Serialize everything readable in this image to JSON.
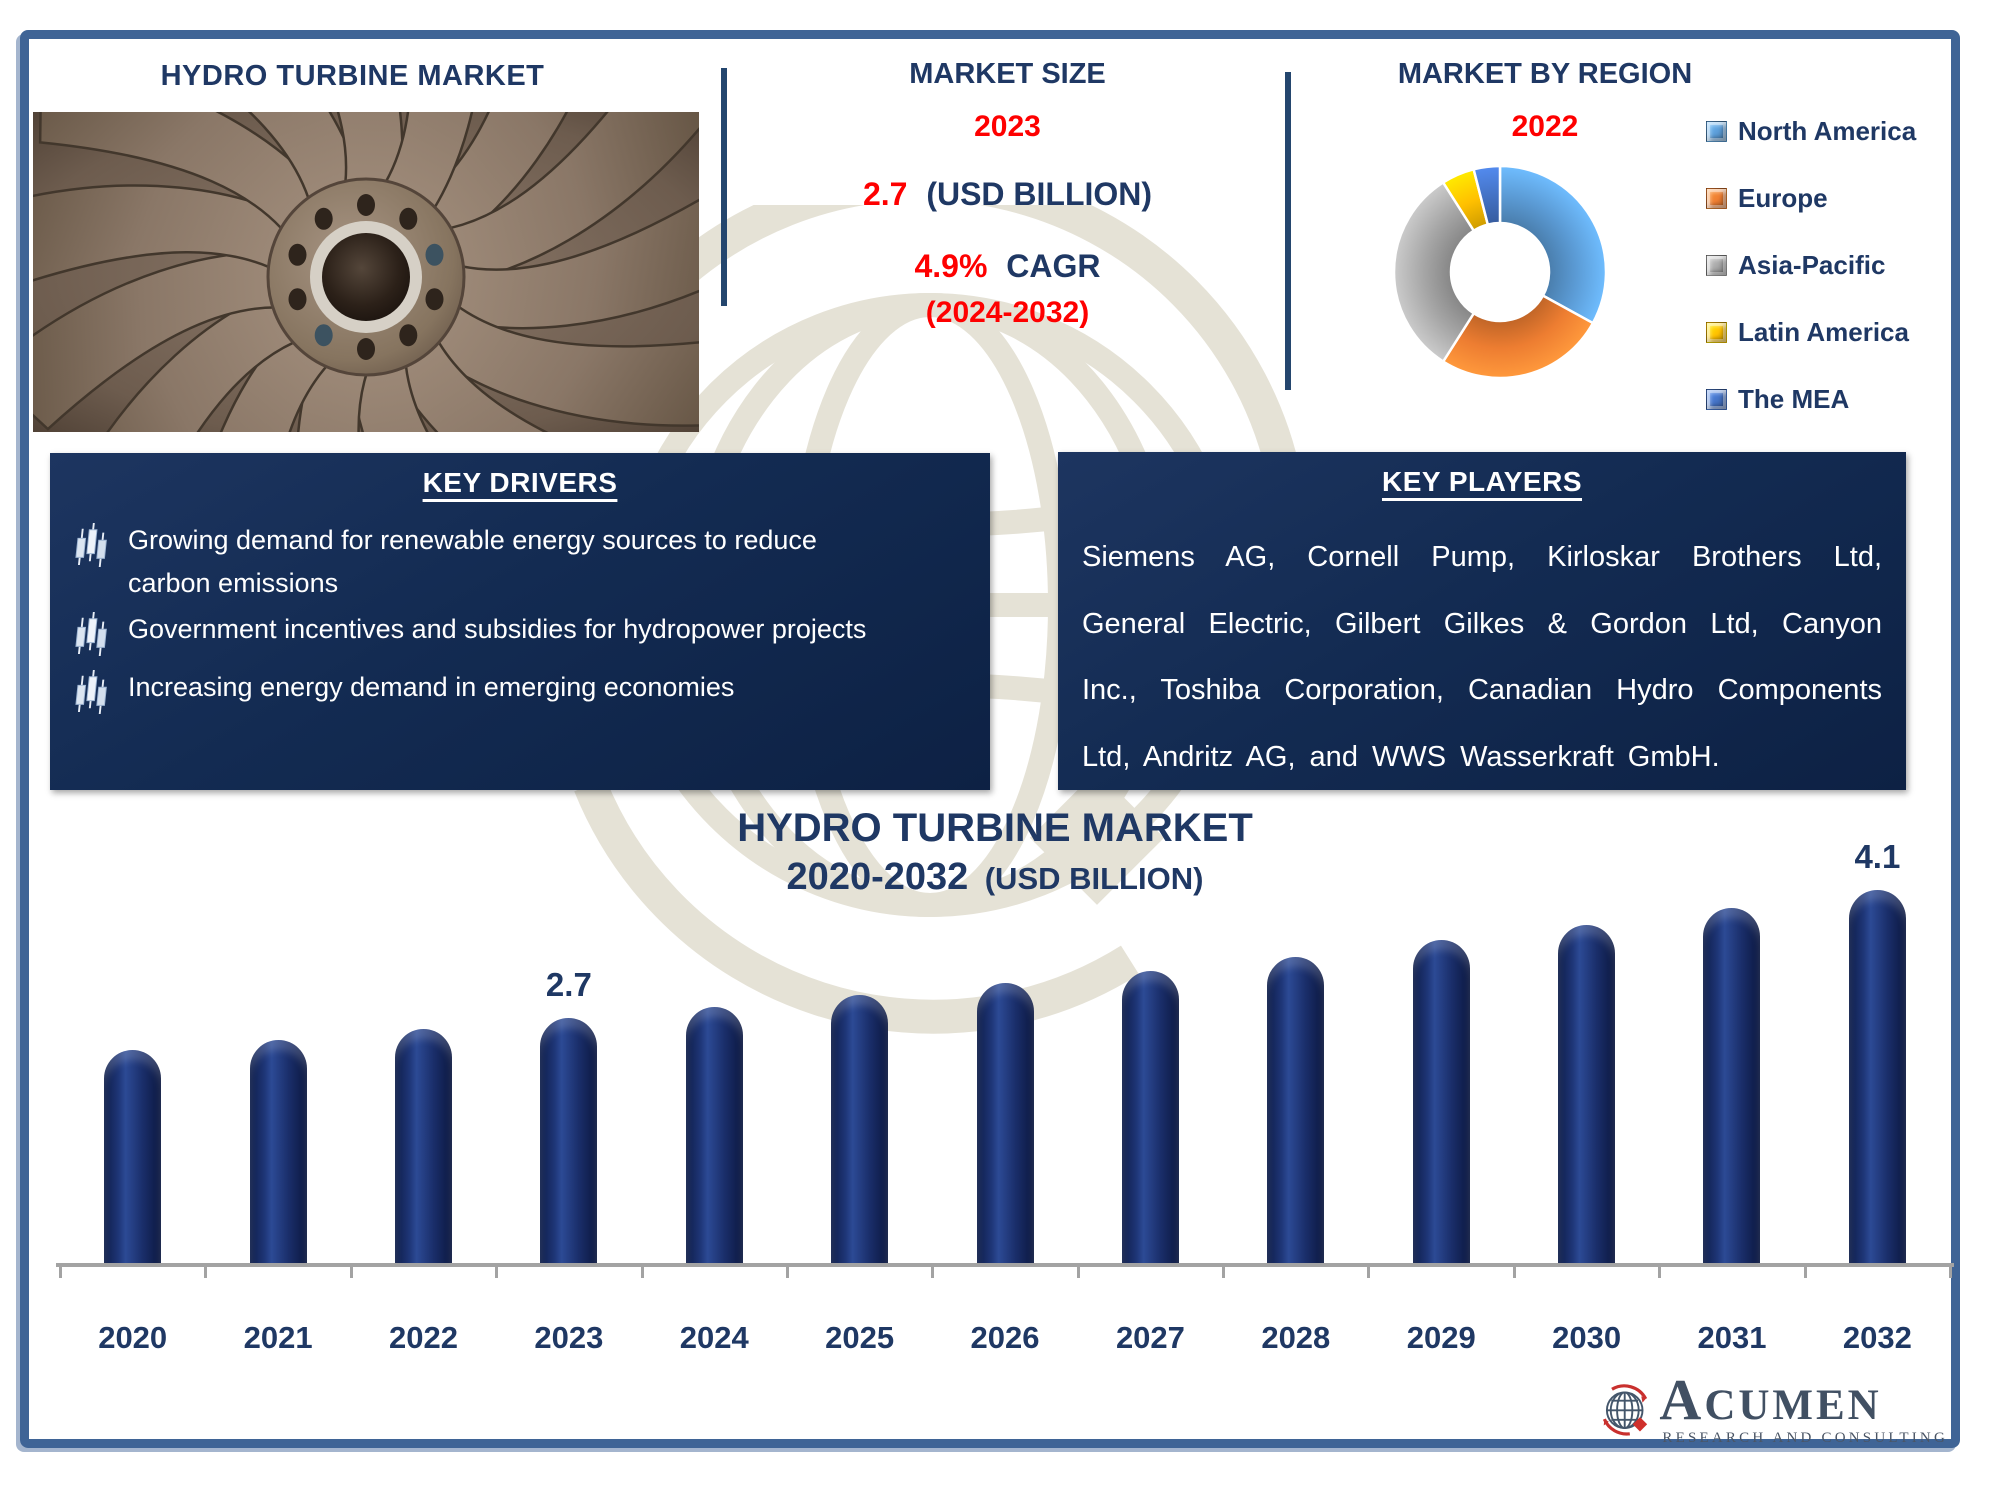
{
  "header": {
    "title": "HYDRO TURBINE MARKET",
    "market_size": {
      "label": "MARKET SIZE",
      "year": "2023",
      "value": "2.7",
      "unit": "(USD BILLION)",
      "cagr": "4.9%",
      "cagr_label": "CAGR",
      "period": "(2024-2032)"
    },
    "region": {
      "label": "MARKET BY REGION",
      "year": "2022"
    }
  },
  "key_drivers": {
    "title": "KEY DRIVERS",
    "items": [
      "Growing demand for renewable energy sources to reduce carbon emissions",
      "Government incentives and subsidies for hydropower projects",
      "Increasing energy demand in emerging economies"
    ]
  },
  "key_players": {
    "title": "KEY PLAYERS",
    "text": "Siemens AG, Cornell Pump, Kirloskar Brothers Ltd, General Electric, Gilbert Gilkes & Gordon Ltd, Canyon Inc., Toshiba Corporation, Canadian Hydro Components Ltd, Andritz AG, and WWS Wasserkraft GmbH."
  },
  "chart_data": [
    {
      "type": "pie",
      "donut": true,
      "title": "MARKET BY REGION",
      "year": "2022",
      "labels": [
        "North America",
        "Europe",
        "Asia-Pacific",
        "Latin America",
        "The MEA"
      ],
      "values": [
        33,
        26,
        32,
        5,
        4
      ],
      "colors": [
        "#5b9bd5",
        "#ed7d31",
        "#a6a6a6",
        "#ffc000",
        "#4472c4"
      ],
      "legend_position": "right",
      "start_angle_deg": 0
    },
    {
      "type": "bar",
      "title": "HYDRO TURBINE MARKET",
      "subtitle_range": "2020-2032",
      "subtitle_unit": "(USD BILLION)",
      "categories": [
        "2020",
        "2021",
        "2022",
        "2023",
        "2024",
        "2025",
        "2026",
        "2027",
        "2028",
        "2029",
        "2030",
        "2031",
        "2032"
      ],
      "values": [
        2.35,
        2.46,
        2.58,
        2.7,
        2.82,
        2.95,
        3.08,
        3.21,
        3.37,
        3.55,
        3.72,
        3.9,
        4.1
      ],
      "annotations": [
        {
          "category": "2023",
          "text": "2.7"
        },
        {
          "category": "2032",
          "text": "4.1"
        }
      ],
      "ylim": [
        0,
        4.4
      ],
      "grid": false,
      "bar_color": "#16295f",
      "xlabel": "",
      "ylabel": "USD Billion"
    }
  ],
  "logo": {
    "brand": "ACUMEN",
    "tagline": "RESEARCH AND CONSULTING"
  },
  "palette": {
    "navy_text": "#1f3864",
    "red_text": "#fe0000",
    "frame": "#3f6496",
    "box_gradient_top": "#1d3560",
    "box_gradient_bottom": "#0d2144",
    "bar_navy": "#16295f",
    "axis_gray": "#a3a3a3",
    "watermark_beige": "#e5e2d6"
  }
}
